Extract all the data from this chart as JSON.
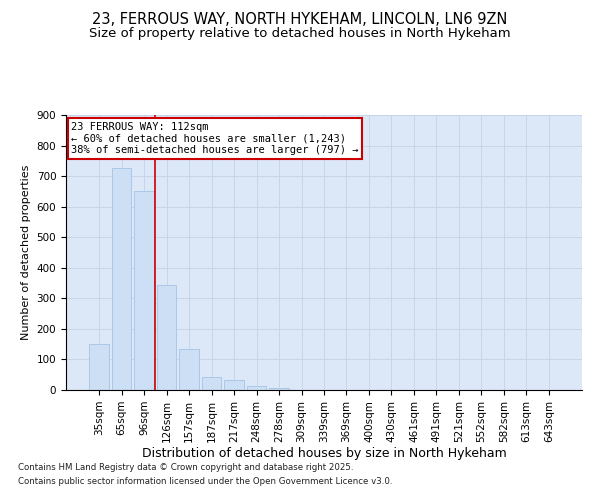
{
  "title1": "23, FERROUS WAY, NORTH HYKEHAM, LINCOLN, LN6 9ZN",
  "title2": "Size of property relative to detached houses in North Hykeham",
  "xlabel": "Distribution of detached houses by size in North Hykeham",
  "ylabel": "Number of detached properties",
  "categories": [
    "35sqm",
    "65sqm",
    "96sqm",
    "126sqm",
    "157sqm",
    "187sqm",
    "217sqm",
    "248sqm",
    "278sqm",
    "309sqm",
    "339sqm",
    "369sqm",
    "400sqm",
    "430sqm",
    "461sqm",
    "491sqm",
    "521sqm",
    "552sqm",
    "582sqm",
    "613sqm",
    "643sqm"
  ],
  "values": [
    152,
    725,
    650,
    345,
    135,
    42,
    32,
    12,
    5,
    0,
    0,
    0,
    0,
    0,
    0,
    0,
    0,
    0,
    0,
    0,
    0
  ],
  "bar_color": "#ccdff5",
  "bar_edge_color": "#aac8e8",
  "red_line_x": 2.5,
  "annotation_line1": "23 FERROUS WAY: 112sqm",
  "annotation_line2": "← 60% of detached houses are smaller (1,243)",
  "annotation_line3": "38% of semi-detached houses are larger (797) →",
  "annotation_box_color": "#ffffff",
  "annotation_box_edge": "#cc0000",
  "red_line_color": "#cc0000",
  "ylim": [
    0,
    900
  ],
  "yticks": [
    0,
    100,
    200,
    300,
    400,
    500,
    600,
    700,
    800,
    900
  ],
  "grid_color": "#c8d4e8",
  "bg_color": "#dce8f8",
  "footer1": "Contains HM Land Registry data © Crown copyright and database right 2025.",
  "footer2": "Contains public sector information licensed under the Open Government Licence v3.0.",
  "title1_fontsize": 10.5,
  "title2_fontsize": 9.5,
  "tick_fontsize": 7.5,
  "ylabel_fontsize": 8,
  "xlabel_fontsize": 9
}
